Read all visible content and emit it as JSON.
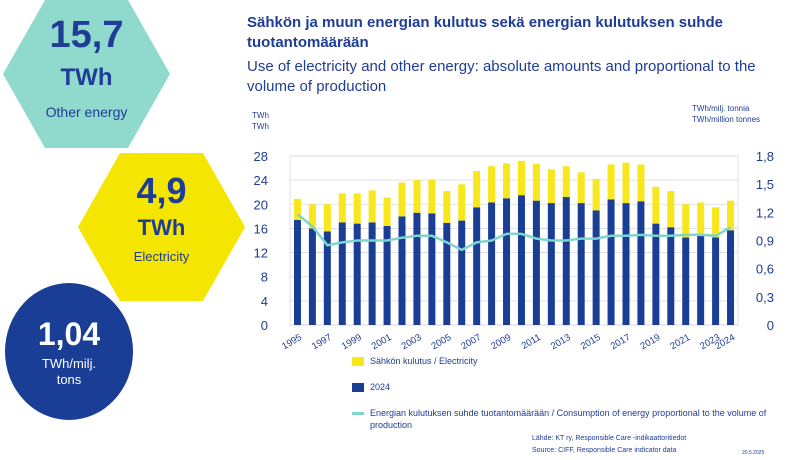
{
  "kpis": {
    "other": {
      "value": "15,7",
      "unit": "TWh",
      "label": "Other energy",
      "color": "#8fd9cd"
    },
    "electricity": {
      "value": "4,9",
      "unit": "TWh",
      "label": "Electricity",
      "color": "#f4e600"
    },
    "ratio": {
      "value": "1,04",
      "unit": "TWh/milj. tons",
      "color": "#1a3d96"
    }
  },
  "title_fi": "Sähkön ja muun energian kulutus sekä energian kulutuksen suhde tuotantomäärään",
  "title_en": "Use of electricity and other energy: absolute amounts and proportional to the volume of production",
  "unit_left": [
    "TWh",
    "TWh"
  ],
  "unit_right": [
    "TWh/milj. tonnia",
    "TWh/million tonnes"
  ],
  "legend": {
    "electricity": "Sähkön kulutus / Electricity",
    "other": "2024",
    "ratio": "Energian kulutuksen suhde tuotantomäärään / Consumption of energy proportional to the volume of production"
  },
  "source_fi": "Lähde: KT ry, Responsible Care -indikaattoritiedot",
  "source_en": "Source: CIFF, Responsible Care indicator data",
  "date": "20.5.2025",
  "chart_data": {
    "type": "bar",
    "categories": [
      "1995",
      "1996",
      "1997",
      "1998",
      "1999",
      "2000",
      "2001",
      "2002",
      "2003",
      "2004",
      "2005",
      "2006",
      "2007",
      "2008",
      "2009",
      "2010",
      "2011",
      "2012",
      "2013",
      "2014",
      "2015",
      "2016",
      "2017",
      "2018",
      "2019",
      "2020",
      "2021",
      "2022",
      "2023",
      "2024"
    ],
    "xtick_labels": [
      "1995",
      "1997",
      "1999",
      "2001",
      "2003",
      "2005",
      "2007",
      "2009",
      "2011",
      "2013",
      "2015",
      "2017",
      "2019",
      "2021",
      "2023",
      "2024"
    ],
    "series": [
      {
        "name": "2024",
        "kind": "bar",
        "color": "#1a3d96",
        "values": [
          17.4,
          16.0,
          15.5,
          17.0,
          16.8,
          17.0,
          16.4,
          18.0,
          18.6,
          18.5,
          16.9,
          17.3,
          19.5,
          20.3,
          21.0,
          21.5,
          20.6,
          20.2,
          21.2,
          20.2,
          19.0,
          20.8,
          20.2,
          20.5,
          16.8,
          16.2,
          14.5,
          14.8,
          14.5,
          15.7
        ]
      },
      {
        "name": "Sähkön kulutus / Electricity",
        "kind": "bar",
        "color": "#f8e71c",
        "values": [
          3.5,
          4.0,
          4.5,
          4.8,
          5.0,
          5.3,
          4.7,
          5.6,
          5.4,
          5.6,
          5.3,
          6.0,
          6.0,
          6.0,
          5.8,
          5.7,
          6.1,
          5.6,
          5.1,
          5.1,
          5.2,
          5.8,
          6.7,
          6.1,
          6.1,
          6.0,
          5.5,
          5.5,
          5.0,
          4.9
        ]
      },
      {
        "name": "Energian kulutuksen suhde tuotantomäärään / Consumption of energy proportional to the volume of production",
        "kind": "line",
        "axis": "right",
        "color": "#7fd4cc",
        "values": [
          1.18,
          1.05,
          0.85,
          0.88,
          0.9,
          0.9,
          0.9,
          0.93,
          0.95,
          0.95,
          0.88,
          0.8,
          0.88,
          0.9,
          0.97,
          0.97,
          0.92,
          0.9,
          0.9,
          0.92,
          0.92,
          0.95,
          0.95,
          0.96,
          0.95,
          0.95,
          0.96,
          0.96,
          0.95,
          1.04
        ]
      }
    ],
    "y_left": {
      "ylim": [
        0,
        28
      ],
      "ticks": [
        "0",
        "4",
        "8",
        "12",
        "16",
        "20",
        "24",
        "28"
      ]
    },
    "y_right": {
      "ylim": [
        0,
        1.8
      ],
      "ticks": [
        "0",
        "0,3",
        "0,6",
        "0,9",
        "1,2",
        "1,5",
        "1,8"
      ]
    },
    "grid": true
  }
}
